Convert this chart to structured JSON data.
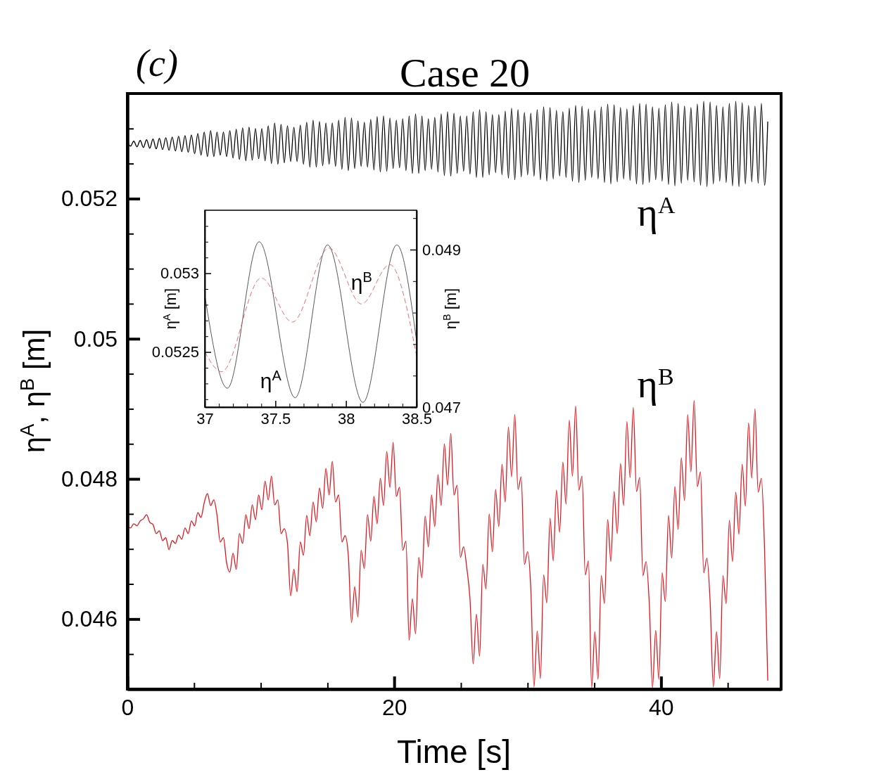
{
  "chart_data": [
    {
      "type": "line",
      "title": "Case 20",
      "xlabel": "Time [s]",
      "ylabel": "η$^{A}$, η$^{B}$ [m]",
      "annotations": [
        "(c)"
      ],
      "xlim": [
        0,
        49
      ],
      "ylim": [
        0.045,
        0.0535
      ],
      "xticks": [
        0,
        {
          "value": 5,
          "label": null
        },
        {
          "value": 10,
          "label": null
        },
        {
          "value": 15,
          "label": null
        },
        20,
        {
          "value": 25,
          "label": null
        },
        {
          "value": 30,
          "label": null
        },
        {
          "value": 35,
          "label": null
        },
        40,
        {
          "value": 45,
          "label": null
        }
      ],
      "yticks": [
        {
          "value": 0.045,
          "label": null
        },
        {
          "value": 0.0455,
          "label": null
        },
        0.046,
        {
          "value": 0.0465,
          "label": null
        },
        {
          "value": 0.047,
          "label": null
        },
        {
          "value": 0.0475,
          "label": null
        },
        0.048,
        {
          "value": 0.0485,
          "label": null
        },
        {
          "value": 0.049,
          "label": null
        },
        {
          "value": 0.0495,
          "label": null
        },
        0.05,
        {
          "value": 0.0505,
          "label": null
        },
        {
          "value": 0.051,
          "label": null
        },
        {
          "value": 0.0515,
          "label": null
        },
        0.052,
        {
          "value": 0.0525,
          "label": null
        },
        {
          "value": 0.053,
          "label": null
        }
      ],
      "x": [
        0,
        0.24,
        0.48,
        0.72,
        0.96,
        1.2,
        1.44,
        1.68,
        1.92,
        2.16,
        2.4,
        2.64,
        2.88,
        3.12,
        3.36,
        3.6,
        3.84,
        4.08,
        4.32,
        4.56,
        4.8,
        5.04,
        5.28,
        5.52,
        5.76,
        6,
        6.24,
        6.48,
        6.72,
        6.96,
        7.2,
        7.44,
        7.68,
        7.92,
        8.16,
        8.4,
        8.64,
        8.88,
        9.12,
        9.36,
        9.6,
        9.84,
        10.08,
        10.32,
        10.56,
        10.8,
        11.04,
        11.28,
        11.52,
        11.76,
        12,
        12.24,
        12.48,
        12.72,
        12.96,
        13.2,
        13.44,
        13.68,
        13.92,
        14.16,
        14.4,
        14.64,
        14.88,
        15.12,
        15.36,
        15.6,
        15.84,
        16.08,
        16.32,
        16.56,
        16.8,
        17.04,
        17.28,
        17.52,
        17.76,
        18,
        18.24,
        18.48,
        18.72,
        18.96,
        19.2,
        19.44,
        19.68,
        19.92,
        20.16,
        20.4,
        20.64,
        20.88,
        21.12,
        21.36,
        21.6,
        21.84,
        22.08,
        22.32,
        22.56,
        22.8,
        23.04,
        23.28,
        23.52,
        23.76,
        24,
        24.24,
        24.48,
        24.72,
        24.96,
        25.2,
        25.44,
        25.68,
        25.92,
        26.16,
        26.4,
        26.64,
        26.88,
        27.12,
        27.36,
        27.6,
        27.84,
        28.08,
        28.32,
        28.56,
        28.8,
        29.04,
        29.28,
        29.52,
        29.76,
        30,
        30.24,
        30.48,
        30.72,
        30.96,
        31.2,
        31.44,
        31.68,
        31.92,
        32.16,
        32.4,
        32.64,
        32.88,
        33.12,
        33.36,
        33.6,
        33.84,
        34.08,
        34.32,
        34.56,
        34.8,
        35.04,
        35.28,
        35.52,
        35.76,
        36,
        36.24,
        36.48,
        36.72,
        36.96,
        37.2,
        37.44,
        37.68,
        37.92,
        38.16,
        38.4,
        38.64,
        38.88,
        39.12,
        39.36,
        39.6,
        39.84,
        40.08,
        40.32,
        40.56,
        40.8,
        41.04,
        41.28,
        41.52,
        41.76,
        42,
        42.24,
        42.48,
        42.72,
        42.96,
        43.2,
        43.44,
        43.68,
        43.92,
        44.16,
        44.4,
        44.64,
        44.88,
        45.12,
        45.36,
        45.6,
        45.84,
        46.08,
        46.32,
        46.56,
        46.8,
        47.04,
        47.28,
        47.52,
        47.76,
        48
      ],
      "series": [
        {
          "name": "η$^{A}$",
          "color": "#000000",
          "values": [
            0.05281,
            0.05275,
            0.05282,
            0.05274,
            0.05283,
            0.05273,
            0.05284,
            0.05272,
            0.05285,
            0.05271,
            0.05286,
            0.0527,
            0.05287,
            0.05269,
            0.05288,
            0.05268,
            0.05289,
            0.05267,
            0.0529,
            0.05266,
            0.05291,
            0.05264,
            0.05293,
            0.05262,
            0.05295,
            0.0526,
            0.05297,
            0.0526,
            0.05295,
            0.05262,
            0.05295,
            0.0526,
            0.05297,
            0.05258,
            0.05299,
            0.05256,
            0.05301,
            0.05254,
            0.05302,
            0.05255,
            0.053,
            0.05257,
            0.053,
            0.05254,
            0.05304,
            0.0525,
            0.05308,
            0.05249,
            0.05306,
            0.05251,
            0.05304,
            0.05253,
            0.05302,
            0.05253,
            0.05305,
            0.05249,
            0.05309,
            0.05245,
            0.05312,
            0.05245,
            0.0531,
            0.05247,
            0.05308,
            0.05249,
            0.05308,
            0.05246,
            0.05312,
            0.05242,
            0.05316,
            0.0524,
            0.05315,
            0.05243,
            0.05311,
            0.05246,
            0.05309,
            0.05245,
            0.05313,
            0.05241,
            0.05317,
            0.05238,
            0.05318,
            0.05239,
            0.05315,
            0.05243,
            0.05312,
            0.05244,
            0.05314,
            0.0524,
            0.05318,
            0.05236,
            0.05321,
            0.05236,
            0.05318,
            0.0524,
            0.05314,
            0.05242,
            0.05316,
            0.05238,
            0.05321,
            0.05233,
            0.05324,
            0.05232,
            0.05322,
            0.05236,
            0.05318,
            0.05239,
            0.05318,
            0.05235,
            0.05324,
            0.0523,
            0.05327,
            0.0523,
            0.05324,
            0.05234,
            0.0532,
            0.05237,
            0.0532,
            0.05234,
            0.05325,
            0.05229,
            0.05329,
            0.05227,
            0.05327,
            0.05231,
            0.05323,
            0.05234,
            0.05322,
            0.05232,
            0.05327,
            0.05227,
            0.05331,
            0.05225,
            0.0533,
            0.05228,
            0.05326,
            0.05232,
            0.05324,
            0.0523,
            0.05329,
            0.05225,
            0.05333,
            0.05223,
            0.05332,
            0.05226,
            0.05328,
            0.0523,
            0.05326,
            0.05228,
            0.05331,
            0.05223,
            0.05335,
            0.05221,
            0.05334,
            0.05224,
            0.0533,
            0.05228,
            0.05328,
            0.05226,
            0.05333,
            0.05221,
            0.05336,
            0.0522,
            0.05335,
            0.05223,
            0.05331,
            0.05227,
            0.05329,
            0.05225,
            0.05334,
            0.0522,
            0.05338,
            0.05218,
            0.05336,
            0.05222,
            0.05332,
            0.05226,
            0.0533,
            0.05224,
            0.05335,
            0.05219,
            0.05339,
            0.05217,
            0.05338,
            0.05221,
            0.05333,
            0.05225,
            0.05331,
            0.05223,
            0.05336,
            0.05218,
            0.05339,
            0.05217,
            0.05337,
            0.05221,
            0.05333,
            0.05224,
            0.05332,
            0.05222,
            0.05336,
            0.05219,
            0.0531
          ]
        },
        {
          "name": "η$^{B}$",
          "color": "#e3141b",
          "values": [
            0.04732,
            0.0473,
            0.04736,
            0.04733,
            0.0474,
            0.04743,
            0.04749,
            0.04738,
            0.04735,
            0.04722,
            0.04726,
            0.04712,
            0.04716,
            0.04699,
            0.04712,
            0.04708,
            0.0472,
            0.04714,
            0.0473,
            0.04722,
            0.0474,
            0.04733,
            0.04752,
            0.04745,
            0.04766,
            0.04779,
            0.04762,
            0.0477,
            0.04748,
            0.0471,
            0.04716,
            0.0468,
            0.04667,
            0.04694,
            0.04671,
            0.04722,
            0.04708,
            0.04749,
            0.04729,
            0.04763,
            0.04742,
            0.04777,
            0.04756,
            0.04797,
            0.0477,
            0.04804,
            0.04763,
            0.0477,
            0.04722,
            0.04729,
            0.04708,
            0.04633,
            0.04671,
            0.04639,
            0.0471,
            0.04691,
            0.04748,
            0.04719,
            0.04767,
            0.04739,
            0.04787,
            0.04758,
            0.04815,
            0.04777,
            0.04825,
            0.04767,
            0.04777,
            0.0471,
            0.04719,
            0.04691,
            0.04595,
            0.04646,
            0.04603,
            0.04698,
            0.04672,
            0.04749,
            0.04711,
            0.04775,
            0.04736,
            0.04801,
            0.04762,
            0.04839,
            0.04788,
            0.04852,
            0.04775,
            0.04788,
            0.04698,
            0.04711,
            0.0457,
            0.04629,
            0.04579,
            0.04688,
            0.04659,
            0.04747,
            0.04703,
            0.04777,
            0.04732,
            0.04806,
            0.04762,
            0.0485,
            0.04791,
            0.04865,
            0.04777,
            0.04791,
            0.04688,
            0.04703,
            0.04673,
            0.04629,
            0.04536,
            0.04607,
            0.04547,
            0.04678,
            0.04643,
            0.0475,
            0.04696,
            0.04785,
            0.04732,
            0.04821,
            0.04767,
            0.04874,
            0.04803,
            0.04892,
            0.04785,
            0.04803,
            0.04678,
            0.04696,
            0.04643,
            0.04503,
            0.04583,
            0.04515,
            0.04663,
            0.04623,
            0.04744,
            0.04683,
            0.04784,
            0.04724,
            0.04824,
            0.04764,
            0.04884,
            0.04804,
            0.04904,
            0.04784,
            0.04804,
            0.04663,
            0.04683,
            0.04502,
            0.04582,
            0.04514,
            0.04662,
            0.04622,
            0.04742,
            0.04682,
            0.04782,
            0.04722,
            0.04822,
            0.04762,
            0.04882,
            0.04802,
            0.04902,
            0.04782,
            0.04802,
            0.04662,
            0.04682,
            0.04622,
            0.04502,
            0.04584,
            0.04514,
            0.04666,
            0.04625,
            0.04748,
            0.04687,
            0.04789,
            0.04728,
            0.0483,
            0.04769,
            0.04892,
            0.0481,
            0.04912,
            0.04789,
            0.0481,
            0.04666,
            0.04687,
            0.04625,
            0.04503,
            0.04582,
            0.04515,
            0.04662,
            0.04622,
            0.04741,
            0.04682,
            0.04781,
            0.04721,
            0.04821,
            0.04761,
            0.0488,
            0.04801,
            0.049,
            0.04781,
            0.04801,
            0.047,
            0.04512
          ]
        }
      ]
    },
    {
      "type": "line",
      "ylabel": "η$^{A}$ [m]",
      "y2label": "η$^{B}$ [m]",
      "xlim": [
        37,
        38.5
      ],
      "ylim": [
        0.05215,
        0.0534
      ],
      "y2lim": [
        0.047,
        0.0495
      ],
      "xticks": [
        37,
        {
          "value": 37.1,
          "label": null
        },
        {
          "value": 37.2,
          "label": null
        },
        {
          "value": 37.3,
          "label": null
        },
        {
          "value": 37.4,
          "label": null
        },
        37.5,
        {
          "value": 37.6,
          "label": null
        },
        {
          "value": 37.7,
          "label": null
        },
        {
          "value": 37.8,
          "label": null
        },
        {
          "value": 37.9,
          "label": null
        },
        38,
        {
          "value": 38.1,
          "label": null
        },
        {
          "value": 38.2,
          "label": null
        },
        {
          "value": 38.3,
          "label": null
        },
        {
          "value": 38.4,
          "label": null
        },
        38.5
      ],
      "yticks": [
        {
          "value": 0.0522,
          "label": null
        },
        {
          "value": 0.0523,
          "label": null
        },
        {
          "value": 0.0524,
          "label": null
        },
        0.0525,
        {
          "value": 0.0526,
          "label": null
        },
        {
          "value": 0.0527,
          "label": null
        },
        {
          "value": 0.0528,
          "label": null
        },
        {
          "value": 0.0529,
          "label": null
        },
        0.053,
        {
          "value": 0.0531,
          "label": null
        },
        {
          "value": 0.0532,
          "label": null
        },
        {
          "value": 0.0533,
          "label": null
        }
      ],
      "y2ticks": [
        0.047,
        {
          "value": 0.0474,
          "label": null
        },
        {
          "value": 0.0478,
          "label": null
        },
        {
          "value": 0.0482,
          "label": null
        },
        {
          "value": 0.0486,
          "label": null
        },
        0.049,
        {
          "value": 0.0494,
          "label": null
        }
      ],
      "series": [
        {
          "name": "η$^{A}$",
          "color": "#444444",
          "line_style": "solid",
          "x": [
            37,
            37.16,
            37.385,
            37.64,
            37.87,
            38.12,
            38.36,
            38.5
          ],
          "values": [
            0.05286,
            0.05227,
            0.0532,
            0.05221,
            0.05318,
            0.05218,
            0.05318,
            0.05257
          ]
        },
        {
          "name": "η$^{B}$",
          "color": "#f05a5a",
          "line_style": "dashed",
          "axis": "y2",
          "x": [
            37,
            37.12,
            37.4,
            37.62,
            37.88,
            38.11,
            38.31,
            38.5
          ],
          "values": [
            0.0477,
            0.04745,
            0.04864,
            0.04808,
            0.04902,
            0.04831,
            0.04881,
            0.04765
          ]
        }
      ]
    }
  ]
}
